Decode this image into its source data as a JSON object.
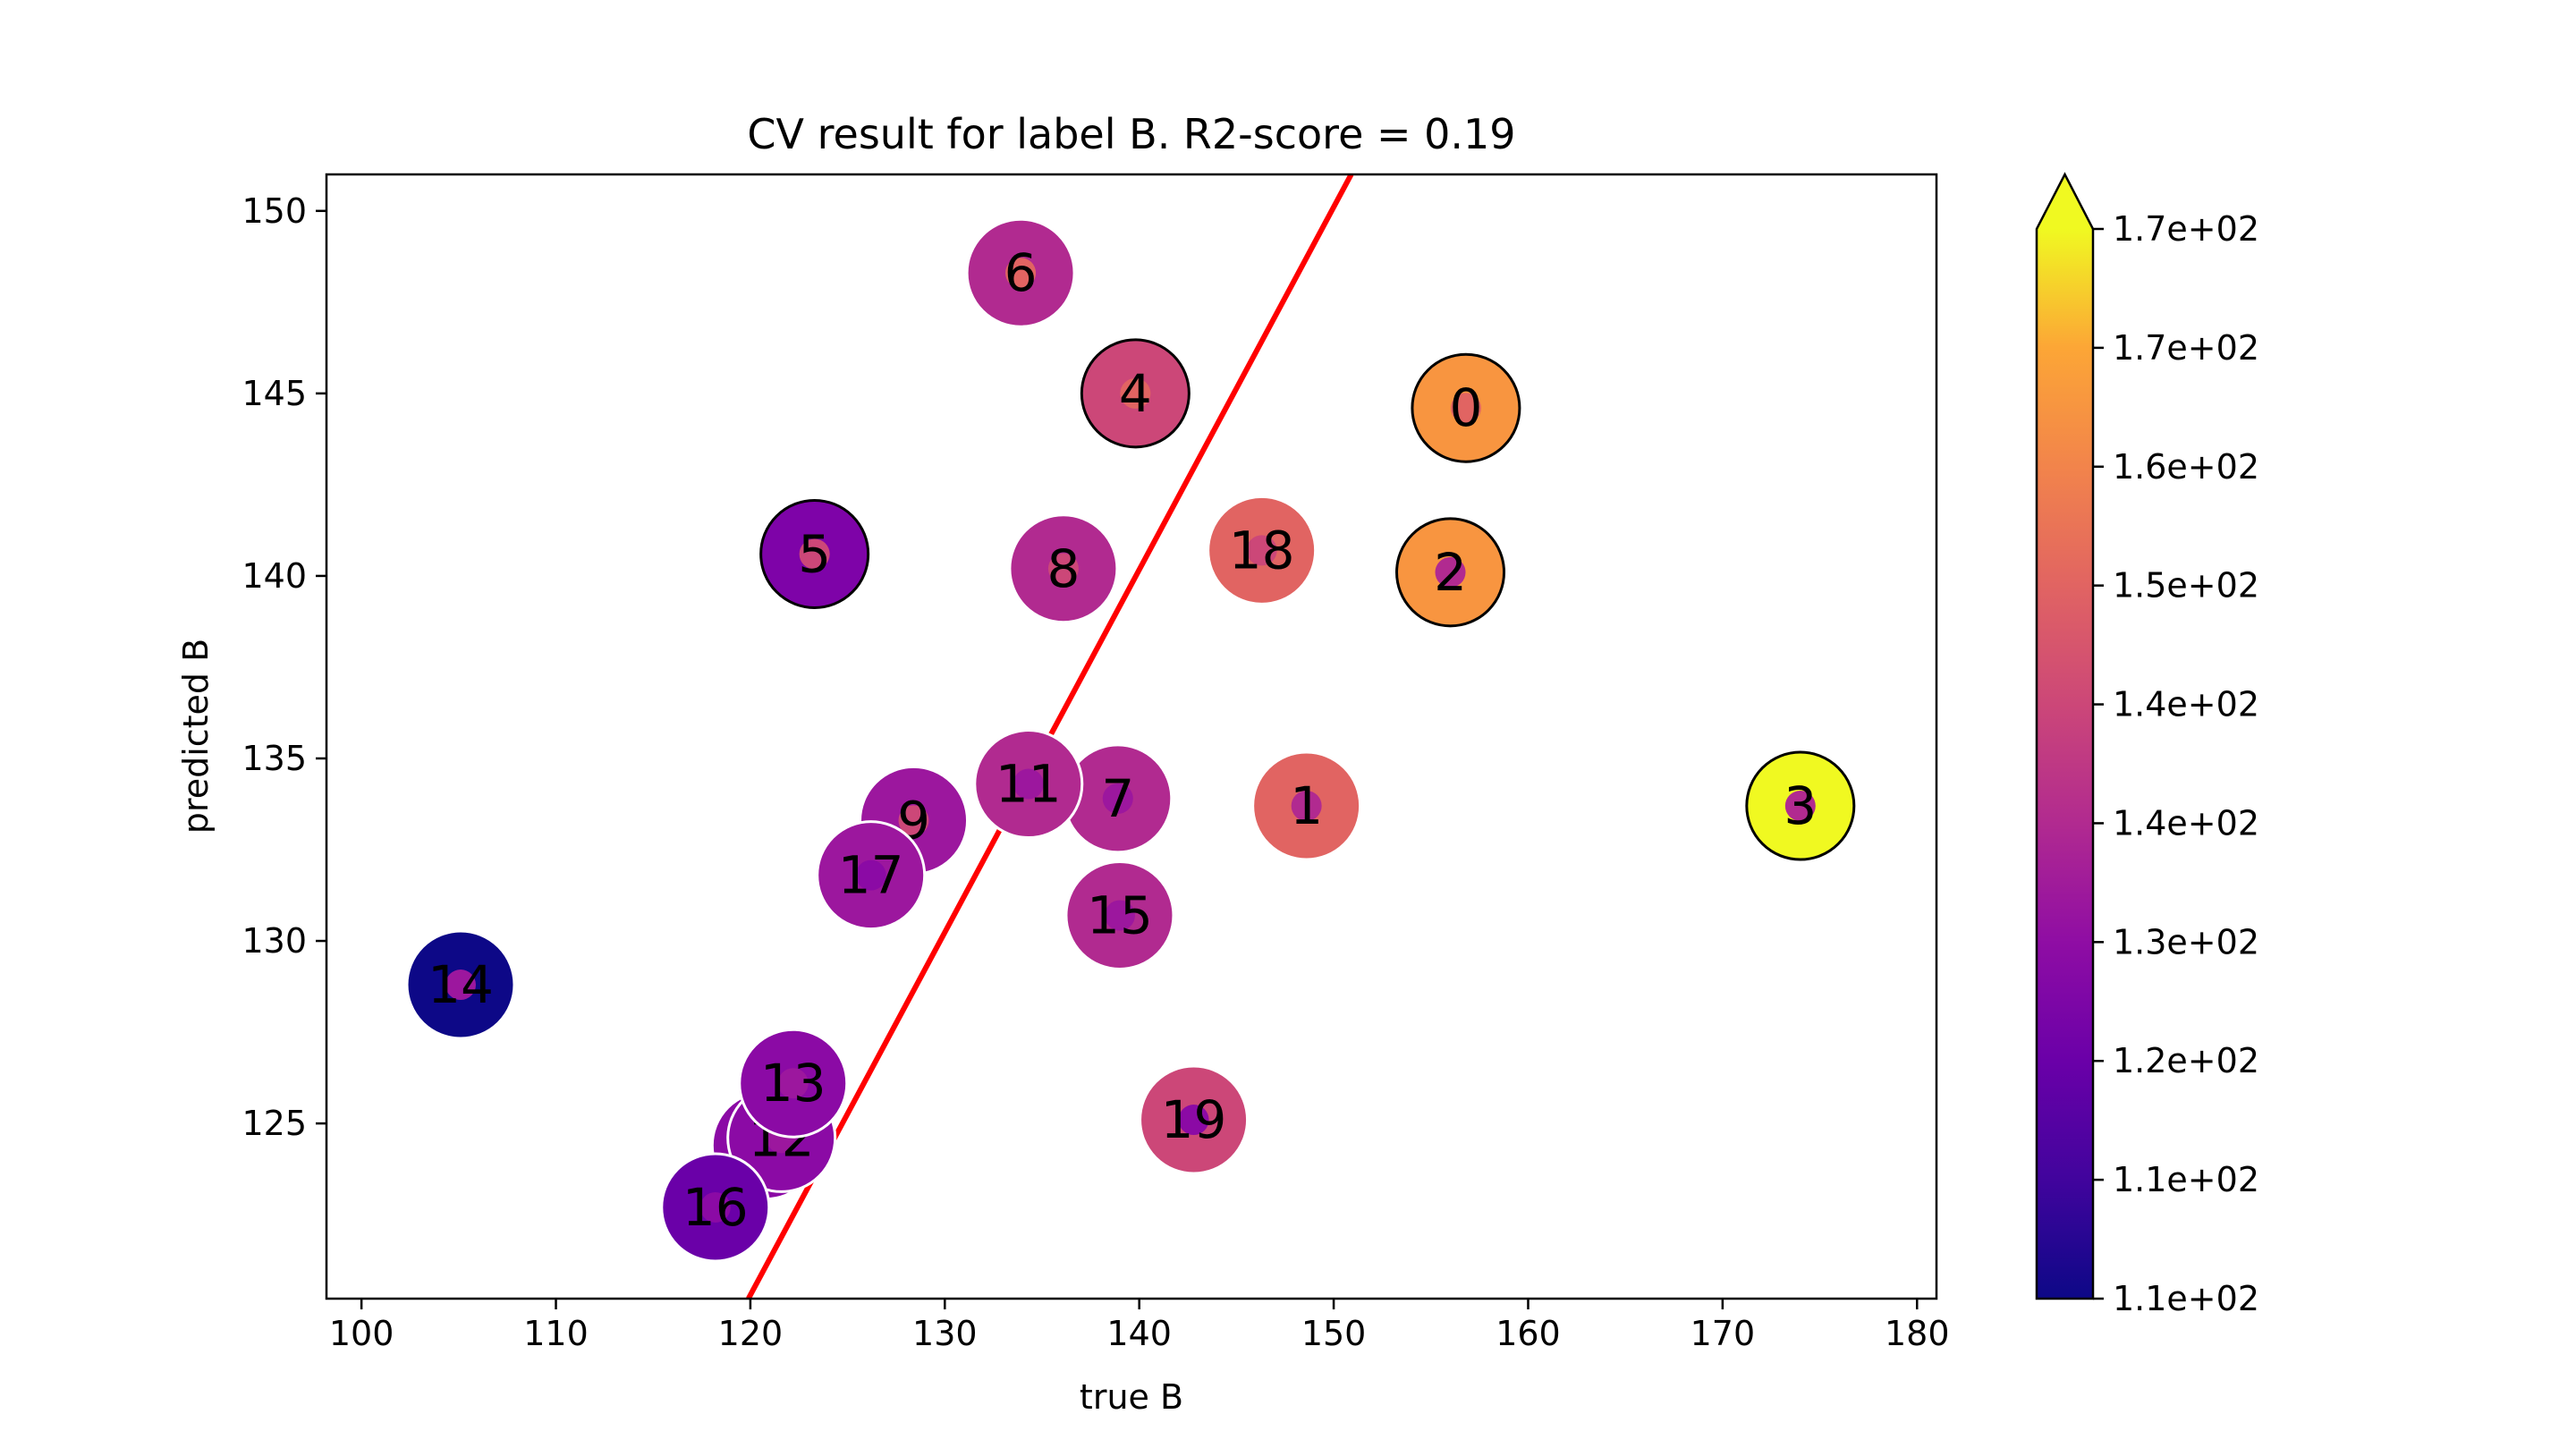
{
  "chart_data": {
    "type": "scatter",
    "title": "CV result for label B. R2-score = 0.19",
    "xlabel": "true B",
    "ylabel": "predicted B",
    "xlim": [
      98.2,
      181
    ],
    "ylim": [
      120.2,
      151
    ],
    "x_ticks": [
      100,
      110,
      120,
      130,
      140,
      150,
      160,
      170,
      180
    ],
    "y_ticks": [
      125,
      130,
      135,
      140,
      145,
      150
    ],
    "fit_line": {
      "x": [
        119.9,
        150.9
      ],
      "y": [
        120.2,
        151.0
      ],
      "color": "#ff0000"
    },
    "points": [
      {
        "label": "0",
        "x": 156.8,
        "y": 144.6,
        "color": "#f89540",
        "inner_color": "#e16462",
        "edge": "black"
      },
      {
        "label": "1",
        "x": 148.6,
        "y": 133.7,
        "color": "#e16462",
        "inner_color": "#b12a90",
        "edge": "white"
      },
      {
        "label": "2",
        "x": 156.0,
        "y": 140.1,
        "color": "#f89540",
        "inner_color": "#b12a90",
        "edge": "black"
      },
      {
        "label": "3",
        "x": 174.0,
        "y": 133.7,
        "color": "#f0f921",
        "inner_color": "#b12a90",
        "edge": "black"
      },
      {
        "label": "4",
        "x": 139.8,
        "y": 145.0,
        "color": "#cc4778",
        "inner_color": "#e16462",
        "edge": "black"
      },
      {
        "label": "5",
        "x": 123.3,
        "y": 140.6,
        "color": "#7e03a8",
        "inner_color": "#cc4778",
        "edge": "black"
      },
      {
        "label": "6",
        "x": 133.9,
        "y": 148.3,
        "color": "#b12a90",
        "inner_color": "#e16462",
        "edge": "white"
      },
      {
        "label": "7",
        "x": 138.9,
        "y": 133.9,
        "color": "#b12a90",
        "inner_color": "#9c179e",
        "edge": "white"
      },
      {
        "label": "8",
        "x": 136.1,
        "y": 140.2,
        "color": "#b12a90",
        "inner_color": "#cc4778",
        "edge": "white"
      },
      {
        "label": "9",
        "x": 128.4,
        "y": 133.3,
        "color": "#9c179e",
        "inner_color": "#cc4778",
        "edge": "white"
      },
      {
        "label": "10",
        "x": 120.8,
        "y": 124.4,
        "color": "#8b0aa5",
        "inner_color": "#9c179e",
        "edge": "white"
      },
      {
        "label": "11",
        "x": 134.3,
        "y": 134.3,
        "color": "#b12a90",
        "inner_color": "#9c179e",
        "edge": "white"
      },
      {
        "label": "12",
        "x": 121.6,
        "y": 124.6,
        "color": "#8b0aa5",
        "inner_color": "#9c179e",
        "edge": "white"
      },
      {
        "label": "13",
        "x": 122.2,
        "y": 126.1,
        "color": "#8b0aa5",
        "inner_color": "#9c179e",
        "edge": "white"
      },
      {
        "label": "14",
        "x": 105.1,
        "y": 128.8,
        "color": "#0d0887",
        "inner_color": "#9c179e",
        "edge": "white"
      },
      {
        "label": "15",
        "x": 139.0,
        "y": 130.7,
        "color": "#b12a90",
        "inner_color": "#9c179e",
        "edge": "white"
      },
      {
        "label": "16",
        "x": 118.2,
        "y": 122.7,
        "color": "#6a00a8",
        "inner_color": "#8b0aa5",
        "edge": "white"
      },
      {
        "label": "17",
        "x": 126.2,
        "y": 131.8,
        "color": "#9c179e",
        "inner_color": "#8b0aa5",
        "edge": "white"
      },
      {
        "label": "18",
        "x": 146.3,
        "y": 140.7,
        "color": "#e16462",
        "inner_color": "#cc4778",
        "edge": "white"
      },
      {
        "label": "19",
        "x": 142.8,
        "y": 125.1,
        "color": "#cc4778",
        "inner_color": "#8b0aa5",
        "edge": "white"
      }
    ],
    "colorbar": {
      "colormap": "plasma",
      "tick_labels": [
        "1.1e+02",
        "1.1e+02",
        "1.2e+02",
        "1.3e+02",
        "1.4e+02",
        "1.4e+02",
        "1.5e+02",
        "1.6e+02",
        "1.7e+02",
        "1.7e+02"
      ],
      "extend": "max"
    }
  }
}
